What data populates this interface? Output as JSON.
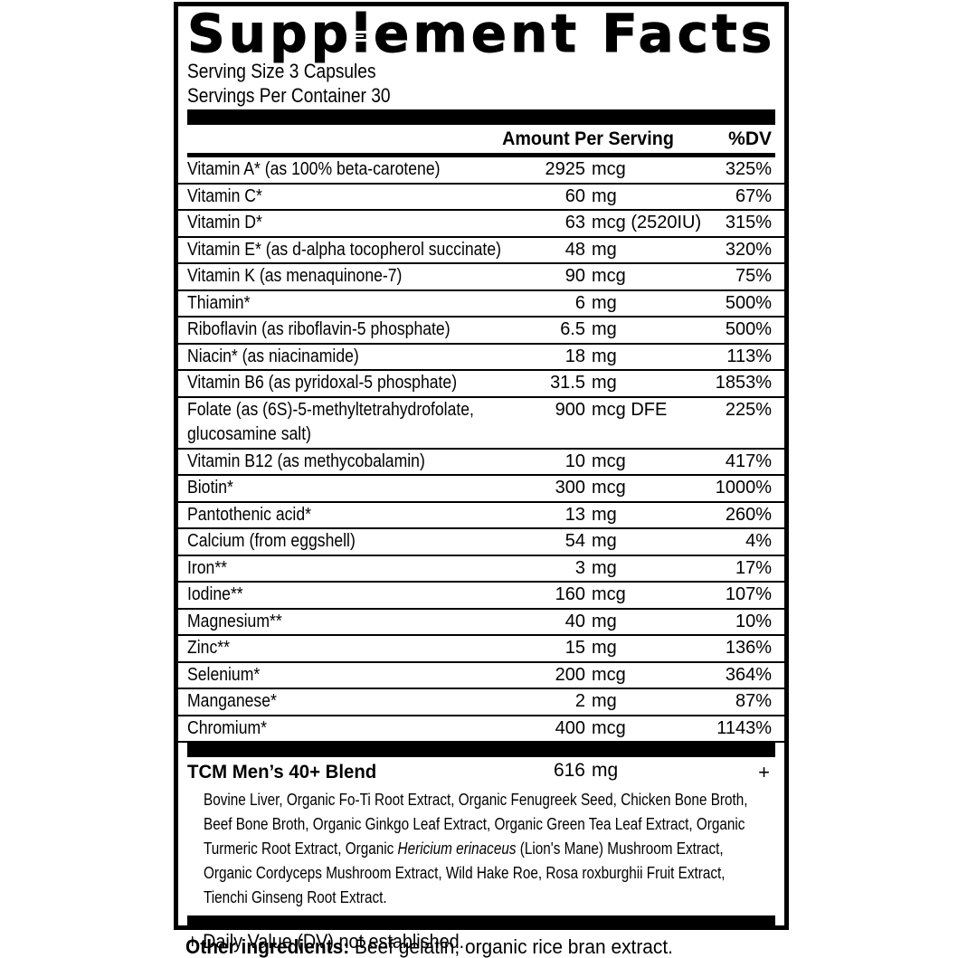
{
  "label": {
    "title": "Supplement Facts",
    "serving_size": "Serving Size 3 Capsules",
    "servings_per_container": "Servings Per Container 30",
    "columns": {
      "amount": "Amount Per Serving",
      "dv": "%DV"
    },
    "rows": [
      {
        "name": "Vitamin A* (as 100% beta-carotene)",
        "amount": "2925 mcg",
        "dv": "325%"
      },
      {
        "name": "Vitamin C*",
        "amount": "60 mg",
        "dv": "67%"
      },
      {
        "name": "Vitamin D*",
        "amount": "63 mcg (2520IU)",
        "dv": "315%"
      },
      {
        "name": "Vitamin E* (as d-alpha tocopherol succinate)",
        "amount": "48 mg",
        "dv": "320%"
      },
      {
        "name": "Vitamin K (as menaquinone-7)",
        "amount": "90 mcg",
        "dv": "75%"
      },
      {
        "name": "Thiamin*",
        "amount": "6 mg",
        "dv": "500%"
      },
      {
        "name": "Riboflavin (as riboflavin-5 phosphate)",
        "amount": "6.5 mg",
        "dv": "500%"
      },
      {
        "name": "Niacin* (as niacinamide)",
        "amount": "18 mg",
        "dv": "113%"
      },
      {
        "name": "Vitamin B6 (as pyridoxal-5 phosphate)",
        "amount": "31.5 mg",
        "dv": "1853%"
      },
      {
        "name": "Folate (as (6S)-5-methyltetrahydrofolate,",
        "name2": "glucosamine salt)",
        "amount": "900 mcg DFE",
        "dv": "225%"
      },
      {
        "name": "Vitamin B12 (as methycobalamin)",
        "amount": "10 mcg",
        "dv": "417%"
      },
      {
        "name": "Biotin*",
        "amount": "300 mcg",
        "dv": "1000%"
      },
      {
        "name": "Pantothenic acid*",
        "amount": "13 mg",
        "dv": "260%"
      },
      {
        "name": "Calcium (from eggshell)",
        "amount": "54 mg",
        "dv": "4%"
      },
      {
        "name": "Iron**",
        "amount": "3 mg",
        "dv": "17%"
      },
      {
        "name": "Iodine**",
        "amount": "160 mcg",
        "dv": "107%"
      },
      {
        "name": "Magnesium**",
        "amount": "40 mg",
        "dv": "10%"
      },
      {
        "name": "Zinc**",
        "amount": "15 mg",
        "dv": "136%"
      },
      {
        "name": "Selenium*",
        "amount": "200 mcg",
        "dv": "364%"
      },
      {
        "name": "Manganese*",
        "amount": "2 mg",
        "dv": "87%"
      },
      {
        "name": "Chromium*",
        "amount": "400 mcg",
        "dv": "1143%"
      }
    ],
    "blend": {
      "name": "TCM Men’s 40+ Blend",
      "amount": "616 mg",
      "dv": "+",
      "ingredients": {
        "before": "Bovine Liver, Organic Fo-Ti Root Extract, Organic Fenugreek Seed, Chicken Bone Broth, Beef Bone Broth, Organic Ginkgo Leaf Extract, Organic Green Tea Leaf Extract, Organic Turmeric Root Extract, Organic ",
        "italic": "Hericium erinaceus",
        "after": " (Lion's Mane) Mushroom Extract, Organic Cordyceps Mushroom Extract, Wild Hake Roe, Rosa roxburghii Fruit Extract, Tienchi Ginseng Root Extract."
      }
    },
    "footnote": "+ Daily Value (DV) not established."
  },
  "other_ingredients": {
    "label": "Other ingredients:",
    "text": "Beef gelatin, organic rice bran extract."
  },
  "colors": {
    "ink": "#000000",
    "background": "#ffffff"
  }
}
